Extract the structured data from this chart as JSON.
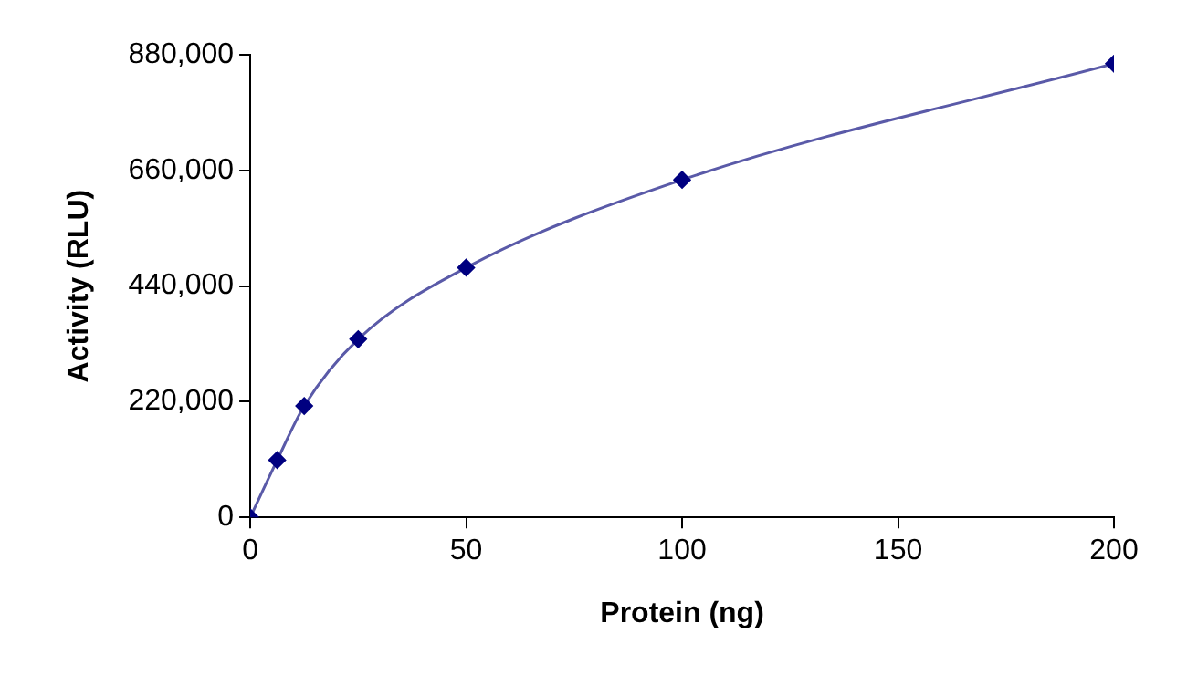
{
  "chart_data": {
    "type": "line",
    "xlabel": "Protein (ng)",
    "ylabel": "Activity (RLU)",
    "x": [
      0,
      6.25,
      12.5,
      25,
      50,
      100,
      200
    ],
    "series": [
      {
        "color": "#000080",
        "values": [
          0,
          109000,
          212000,
          339000,
          475000,
          642000,
          863000
        ]
      }
    ],
    "xlim": [
      0,
      200
    ],
    "xticks": [
      0,
      50,
      100,
      150,
      200
    ],
    "ylim": [
      0,
      880000
    ],
    "yticks": [
      {
        "value": 0,
        "label": "0"
      },
      {
        "value": 220000,
        "label": "220,000"
      },
      {
        "value": 440000,
        "label": "440,000"
      },
      {
        "value": 660000,
        "label": "660,000"
      },
      {
        "value": 880000,
        "label": "880,000"
      }
    ],
    "grid": false,
    "legend": false,
    "marker": "diamond",
    "line_style": "solid"
  }
}
